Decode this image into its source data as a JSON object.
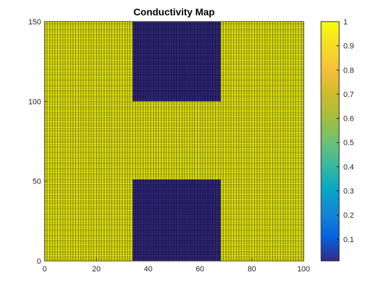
{
  "chart_data": {
    "type": "heatmap",
    "title": "Conductivity Map",
    "xlabel": "",
    "ylabel": "",
    "xlim": [
      0,
      100
    ],
    "ylim": [
      0,
      150
    ],
    "x_ticks": [
      "0",
      "20",
      "40",
      "60",
      "80",
      "100"
    ],
    "y_ticks": [
      "0",
      "50",
      "100",
      "150"
    ],
    "x_tick_values": [
      0,
      20,
      40,
      60,
      80,
      100
    ],
    "y_tick_values": [
      0,
      50,
      100,
      150
    ],
    "grid": true,
    "background_value": 1,
    "regions": [
      {
        "x_range": [
          34,
          68
        ],
        "y_range": [
          0,
          51
        ],
        "value": 0.01
      },
      {
        "x_range": [
          34,
          68
        ],
        "y_range": [
          100,
          150
        ],
        "value": 0.01
      }
    ],
    "colorbar": {
      "range": [
        0.01,
        1
      ],
      "ticks": [
        "0.1",
        "0.2",
        "0.3",
        "0.4",
        "0.5",
        "0.6",
        "0.7",
        "0.8",
        "0.9",
        "1"
      ],
      "tick_values": [
        0.1,
        0.2,
        0.3,
        0.4,
        0.5,
        0.6,
        0.7,
        0.8,
        0.9,
        1
      ],
      "colormap": "parula",
      "placement": "right"
    },
    "colors": {
      "high": "#f9fb0e",
      "low": "#352a87",
      "mesh": "#000000"
    }
  }
}
